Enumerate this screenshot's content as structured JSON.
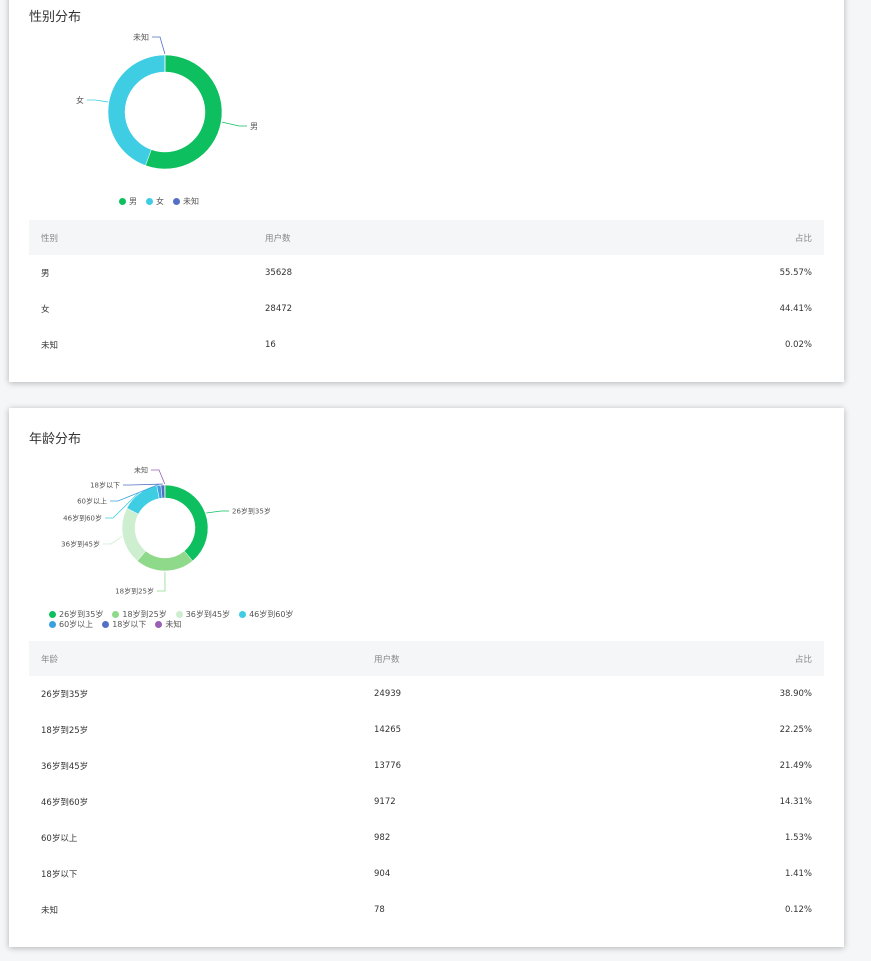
{
  "gender": {
    "title": "性别分布",
    "chart_data": {
      "type": "pie",
      "categories": [
        "男",
        "女",
        "未知"
      ],
      "values": [
        35628,
        28472,
        16
      ],
      "colors": [
        "#0dbf5e",
        "#3fcde3",
        "#5470c6"
      ]
    },
    "legend": [
      {
        "label": "男",
        "color": "#0dbf5e"
      },
      {
        "label": "女",
        "color": "#3fcde3"
      },
      {
        "label": "未知",
        "color": "#5470c6"
      }
    ],
    "table": {
      "headers": [
        "性别",
        "用户数",
        "占比"
      ],
      "rows": [
        [
          "男",
          "35628",
          "55.57%"
        ],
        [
          "女",
          "28472",
          "44.41%"
        ],
        [
          "未知",
          "16",
          "0.02%"
        ]
      ]
    }
  },
  "age": {
    "title": "年龄分布",
    "chart_data": {
      "type": "pie",
      "categories": [
        "26岁到35岁",
        "18岁到25岁",
        "36岁到45岁",
        "46岁到60岁",
        "60岁以上",
        "18岁以下",
        "未知"
      ],
      "values": [
        24939,
        14265,
        13776,
        9172,
        982,
        904,
        78
      ],
      "colors": [
        "#0dbf5e",
        "#8ed98a",
        "#cdeecf",
        "#3fcde3",
        "#3ba0e0",
        "#5470c6",
        "#9a60b4"
      ]
    },
    "legend": [
      {
        "label": "26岁到35岁",
        "color": "#0dbf5e"
      },
      {
        "label": "18岁到25岁",
        "color": "#8ed98a"
      },
      {
        "label": "36岁到45岁",
        "color": "#cdeecf"
      },
      {
        "label": "46岁到60岁",
        "color": "#3fcde3"
      },
      {
        "label": "60岁以上",
        "color": "#3ba0e0"
      },
      {
        "label": "18岁以下",
        "color": "#5470c6"
      },
      {
        "label": "未知",
        "color": "#9a60b4"
      }
    ],
    "table": {
      "headers": [
        "年龄",
        "用户数",
        "占比"
      ],
      "rows": [
        [
          "26岁到35岁",
          "24939",
          "38.90%"
        ],
        [
          "18岁到25岁",
          "14265",
          "22.25%"
        ],
        [
          "36岁到45岁",
          "13776",
          "21.49%"
        ],
        [
          "46岁到60岁",
          "9172",
          "14.31%"
        ],
        [
          "60岁以上",
          "982",
          "1.53%"
        ],
        [
          "18岁以下",
          "904",
          "1.41%"
        ],
        [
          "未知",
          "78",
          "0.12%"
        ]
      ]
    }
  }
}
